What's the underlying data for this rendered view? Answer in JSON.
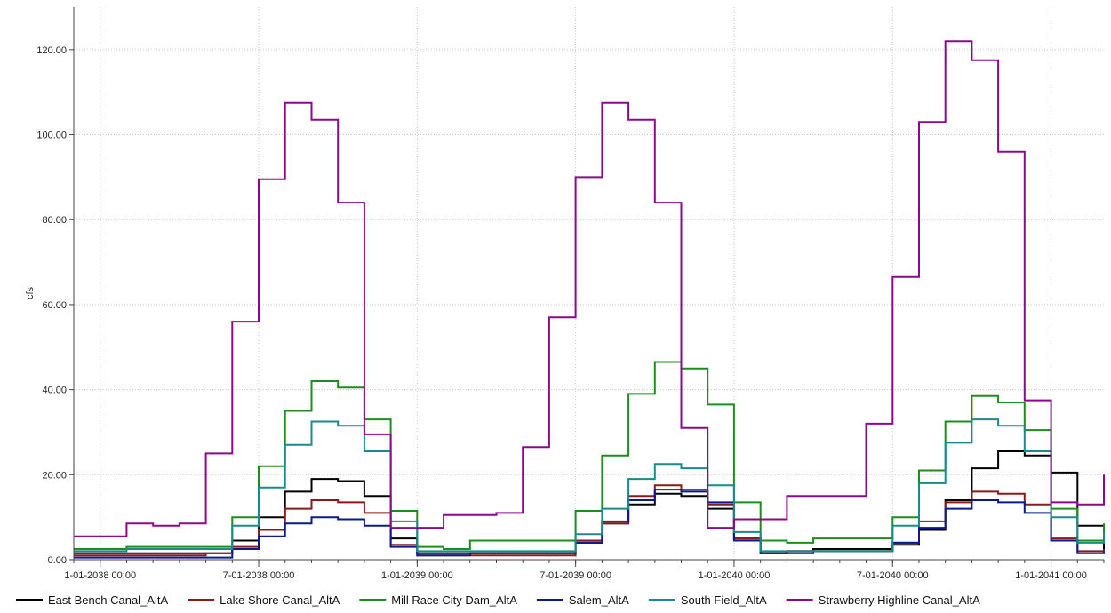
{
  "chart_data": {
    "type": "line",
    "step": true,
    "ylabel": "cfs",
    "ylim": [
      0,
      130
    ],
    "yticks": [
      0,
      20,
      40,
      60,
      80,
      100,
      120
    ],
    "ytick_labels": [
      "0.00",
      "20.00",
      "40.00",
      "60.00",
      "80.00",
      "100.00",
      "120.00"
    ],
    "xlim": [
      "2037-12",
      "2041-03"
    ],
    "xticks": [
      "2038-01",
      "2038-07",
      "2039-01",
      "2039-07",
      "2040-01",
      "2040-07",
      "2041-01"
    ],
    "xtick_labels": [
      "1-01-2038 00:00",
      "7-01-2038 00:00",
      "1-01-2039 00:00",
      "7-01-2039 00:00",
      "1-01-2040 00:00",
      "7-01-2040 00:00",
      "1-01-2041 00:00"
    ],
    "x_start": "2037-12",
    "grid": true,
    "legend_position": "bottom",
    "series": [
      {
        "name": "East Bench Canal_AltA",
        "color": "#000000",
        "values": [
          1.5,
          1.5,
          1.5,
          1.5,
          1.5,
          1.5,
          4.5,
          10,
          16,
          19,
          18.5,
          15,
          5,
          1.5,
          1.5,
          1.5,
          1.5,
          1.5,
          1.5,
          4,
          8.5,
          13,
          15.5,
          15,
          12,
          5,
          1.5,
          2,
          2.5,
          2.5,
          2.5,
          3.5,
          7,
          14,
          21.5,
          25.5,
          24.5,
          20.5,
          8,
          2.5,
          2.5,
          3,
          3.5,
          3.5
        ]
      },
      {
        "name": "Lake Shore Canal_AltA",
        "color": "#8b1a1a",
        "values": [
          1,
          1,
          1,
          1,
          1,
          1.5,
          3,
          7,
          12,
          14,
          13.5,
          11,
          3.5,
          1,
          1,
          1,
          1,
          1,
          1,
          4.5,
          8.5,
          15,
          17.5,
          16.5,
          13,
          5,
          1.5,
          2,
          2,
          2,
          2,
          4,
          9,
          13.5,
          16,
          15.5,
          13,
          5,
          2,
          2,
          2.5,
          2.5,
          2.5
        ]
      },
      {
        "name": "Mill Race City Dam_AltA",
        "color": "#1e8c1e",
        "values": [
          2.5,
          2.5,
          3,
          3,
          3,
          3,
          10,
          22,
          35,
          42,
          40.5,
          33,
          11.5,
          3,
          2.5,
          4.5,
          4.5,
          4.5,
          4.5,
          11.5,
          24.5,
          39,
          46.5,
          45,
          36.5,
          13.5,
          4.5,
          4,
          5,
          5,
          5,
          10,
          21,
          32.5,
          38.5,
          37,
          30.5,
          12,
          4.5,
          4.5,
          8.5,
          8,
          8.5
        ]
      },
      {
        "name": "Salem_AltA",
        "color": "#0a1a8c",
        "values": [
          0.5,
          0.5,
          0.5,
          0.5,
          0.5,
          0.5,
          2.5,
          5.5,
          8.5,
          10,
          9.5,
          8,
          3,
          1,
          1,
          1.5,
          1.5,
          1.5,
          1.5,
          4,
          9,
          14,
          16.5,
          16,
          13.5,
          4.5,
          1.5,
          1.5,
          2,
          2,
          2,
          4,
          7.5,
          12,
          14,
          13.5,
          11,
          4.5,
          1.5,
          2,
          2,
          2,
          2
        ]
      },
      {
        "name": "South Field_AltA",
        "color": "#1a8a8a",
        "values": [
          2,
          2,
          2.5,
          2.5,
          2.5,
          2.5,
          8,
          17,
          27,
          32.5,
          31.5,
          25.5,
          9,
          2,
          2,
          2,
          2,
          2,
          2,
          6,
          12,
          19,
          22.5,
          21.5,
          17.5,
          6.5,
          2,
          2,
          2,
          2,
          2,
          8,
          18,
          27.5,
          33,
          31.5,
          25.5,
          10,
          4,
          4,
          6.5,
          6.5,
          6.5
        ]
      },
      {
        "name": "Strawberry Highline Canal_AltA",
        "color": "#8b0a8b",
        "values": [
          5.5,
          5.5,
          8.5,
          8,
          8.5,
          25,
          56,
          89.5,
          107.5,
          103.5,
          84,
          29.5,
          7.5,
          7.5,
          10.5,
          10.5,
          11,
          26.5,
          57,
          90,
          107.5,
          103.5,
          84,
          31,
          7.5,
          9.5,
          9.5,
          15,
          15,
          15,
          32,
          66.5,
          103,
          122,
          117.5,
          96,
          37.5,
          13.5,
          13,
          20,
          19.5,
          20
        ]
      }
    ]
  }
}
